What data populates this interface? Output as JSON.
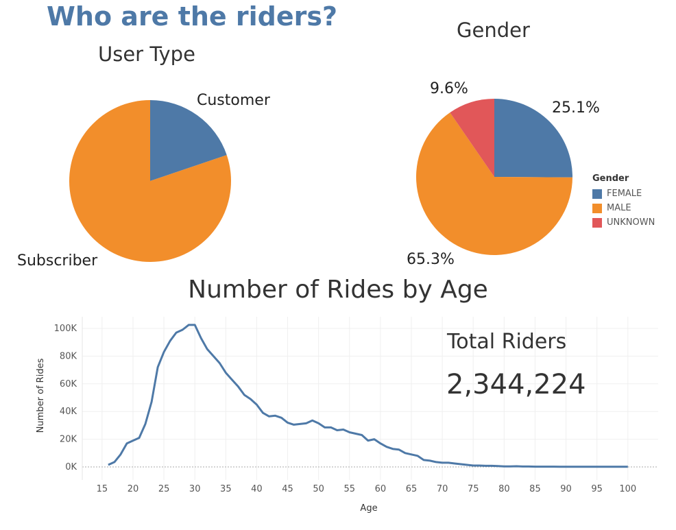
{
  "page": {
    "title": "Who are the riders?"
  },
  "colors": {
    "blue": "#4e79a7",
    "orange": "#f28e2b",
    "red": "#e15759",
    "title_blue": "#4e79a7"
  },
  "total_riders": {
    "label": "Total Riders",
    "value": "2,344,224"
  },
  "chart_data": [
    {
      "type": "pie",
      "title": "User Type",
      "slices": [
        {
          "label": "Customer",
          "value": 19.8,
          "color": "#4e79a7"
        },
        {
          "label": "Subscriber",
          "value": 80.2,
          "color": "#f28e2b"
        }
      ]
    },
    {
      "type": "pie",
      "title": "Gender",
      "legend_title": "Gender",
      "legend_position": "right",
      "slices": [
        {
          "label": "FEMALE",
          "value": 25.1,
          "display": "25.1%",
          "color": "#4e79a7"
        },
        {
          "label": "MALE",
          "value": 65.3,
          "display": "65.3%",
          "color": "#f28e2b"
        },
        {
          "label": "UNKNOWN",
          "value": 9.6,
          "display": "9.6%",
          "color": "#e15759"
        }
      ]
    },
    {
      "type": "line",
      "title": "Number of Rides by Age",
      "xlabel": "Age",
      "ylabel": "Number of Rides",
      "xlim": [
        16,
        100
      ],
      "ylim": [
        0,
        100000
      ],
      "x_ticks": [
        "15",
        "20",
        "25",
        "30",
        "35",
        "40",
        "45",
        "50",
        "55",
        "60",
        "65",
        "70",
        "75",
        "80",
        "85",
        "90",
        "95",
        "100"
      ],
      "y_ticks": [
        "0K",
        "20K",
        "40K",
        "60K",
        "80K",
        "100K"
      ],
      "grid": true,
      "series": [
        {
          "color": "#4e79a7",
          "x": [
            16,
            17,
            18,
            19,
            20,
            21,
            22,
            23,
            24,
            25,
            26,
            27,
            28,
            29,
            30,
            31,
            32,
            33,
            34,
            35,
            36,
            37,
            38,
            39,
            40,
            41,
            42,
            43,
            44,
            45,
            46,
            47,
            48,
            49,
            50,
            51,
            52,
            53,
            54,
            55,
            56,
            57,
            58,
            59,
            60,
            61,
            62,
            63,
            64,
            65,
            66,
            67,
            68,
            69,
            70,
            71,
            72,
            73,
            74,
            75,
            76,
            77,
            78,
            79,
            80,
            81,
            82,
            83,
            84,
            85,
            86,
            87,
            88,
            89,
            90,
            91,
            92,
            93,
            94,
            95,
            96,
            97,
            98,
            99,
            100
          ],
          "y": [
            1500,
            3500,
            9000,
            17000,
            19000,
            21000,
            31000,
            47000,
            72000,
            83000,
            91000,
            97000,
            99000,
            102500,
            102500,
            93000,
            85000,
            80000,
            75000,
            68000,
            63000,
            58000,
            52000,
            49000,
            45000,
            39000,
            36500,
            37000,
            35500,
            32000,
            30500,
            31000,
            31500,
            33500,
            31500,
            28500,
            28500,
            26500,
            27000,
            25000,
            24000,
            23000,
            19000,
            20000,
            17000,
            14500,
            13000,
            12500,
            10000,
            9000,
            8000,
            5000,
            4500,
            3500,
            3000,
            3000,
            2500,
            2000,
            1500,
            1000,
            1000,
            800,
            800,
            600,
            400,
            400,
            500,
            300,
            300,
            200,
            200,
            200,
            200,
            100,
            100,
            100,
            100,
            100,
            100,
            100,
            100,
            100,
            100,
            100,
            100
          ]
        }
      ]
    }
  ]
}
